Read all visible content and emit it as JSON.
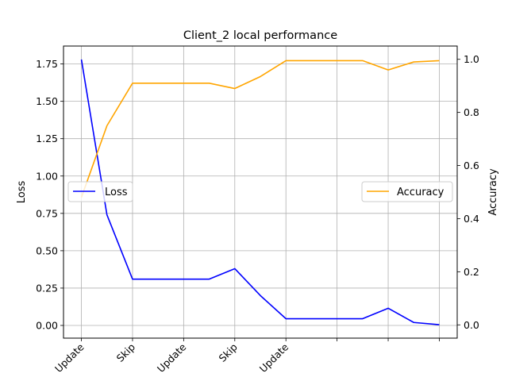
{
  "chart_data": {
    "type": "line",
    "title": "Client_2 local performance",
    "ylabel_left": "Loss",
    "ylabel_right": "Accuracy",
    "x": [
      0,
      1,
      2,
      3,
      4,
      5,
      6,
      7,
      8,
      9,
      10,
      11,
      12,
      13,
      14
    ],
    "x_ticks": [
      0,
      2,
      4,
      6,
      8,
      10,
      12,
      14
    ],
    "x_tick_labels": [
      "Update",
      "Skip",
      "Update",
      "Skip",
      "Update",
      "",
      "",
      ""
    ],
    "xlim": [
      -0.7,
      14.7
    ],
    "grid": true,
    "axes": {
      "left": {
        "ylim": [
          -0.085,
          1.87
        ],
        "ticks": [
          0.0,
          0.25,
          0.5,
          0.75,
          1.0,
          1.25,
          1.5,
          1.75
        ],
        "tick_labels": [
          "0.00",
          "0.25",
          "0.50",
          "0.75",
          "1.00",
          "1.25",
          "1.50",
          "1.75"
        ]
      },
      "right": {
        "ylim": [
          -0.05,
          1.05
        ],
        "ticks": [
          0.0,
          0.2,
          0.4,
          0.6,
          0.8,
          1.0
        ],
        "tick_labels": [
          "0.0",
          "0.2",
          "0.4",
          "0.6",
          "0.8",
          "1.0"
        ]
      }
    },
    "series": [
      {
        "name": "Loss",
        "axis": "left",
        "color": "#0000ff",
        "legend": "center-left",
        "values": [
          1.78,
          0.74,
          0.31,
          0.31,
          0.31,
          0.31,
          0.38,
          0.2,
          0.045,
          0.045,
          0.045,
          0.045,
          0.115,
          0.02,
          0.005
        ]
      },
      {
        "name": "Accuracy",
        "axis": "right",
        "color": "#ffa500",
        "legend": "center-right",
        "values": [
          0.48,
          0.75,
          0.91,
          0.91,
          0.91,
          0.91,
          0.89,
          0.935,
          0.995,
          0.995,
          0.995,
          0.995,
          0.96,
          0.99,
          0.995
        ]
      }
    ]
  }
}
